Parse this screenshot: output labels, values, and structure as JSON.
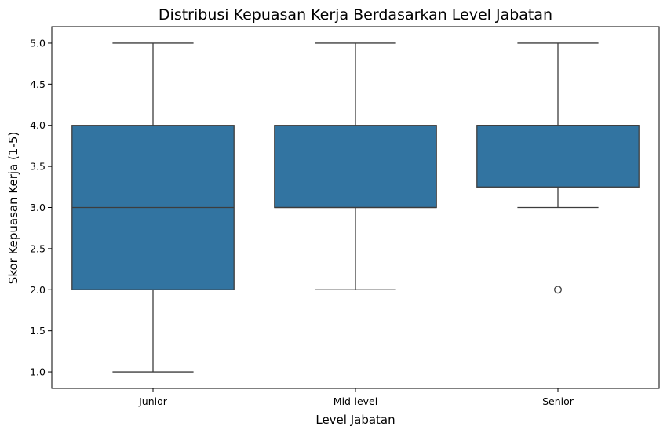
{
  "chart_data": {
    "type": "box",
    "title": "Distribusi Kepuasan Kerja Berdasarkan Level Jabatan",
    "xlabel": "Level Jabatan",
    "ylabel": "Skor Kepuasan Kerja (1-5)",
    "ylim": [
      0.8,
      5.2
    ],
    "yticks": [
      "1.0",
      "1.5",
      "2.0",
      "2.5",
      "3.0",
      "3.5",
      "4.0",
      "4.5",
      "5.0"
    ],
    "grid": false,
    "box_color": "#3274a1",
    "line_color": "#3d3d3d",
    "categories": [
      "Junior",
      "Mid-level",
      "Senior"
    ],
    "boxes": [
      {
        "category": "Junior",
        "whisker_low": 1.0,
        "q1": 2.0,
        "median": 3.0,
        "q3": 4.0,
        "whisker_high": 5.0,
        "outliers": []
      },
      {
        "category": "Mid-level",
        "whisker_low": 2.0,
        "q1": 3.0,
        "median": 3.0,
        "q3": 4.0,
        "whisker_high": 5.0,
        "outliers": []
      },
      {
        "category": "Senior",
        "whisker_low": 3.0,
        "q1": 3.25,
        "median": 4.0,
        "q3": 4.0,
        "whisker_high": 5.0,
        "outliers": [
          2.0
        ]
      }
    ]
  }
}
